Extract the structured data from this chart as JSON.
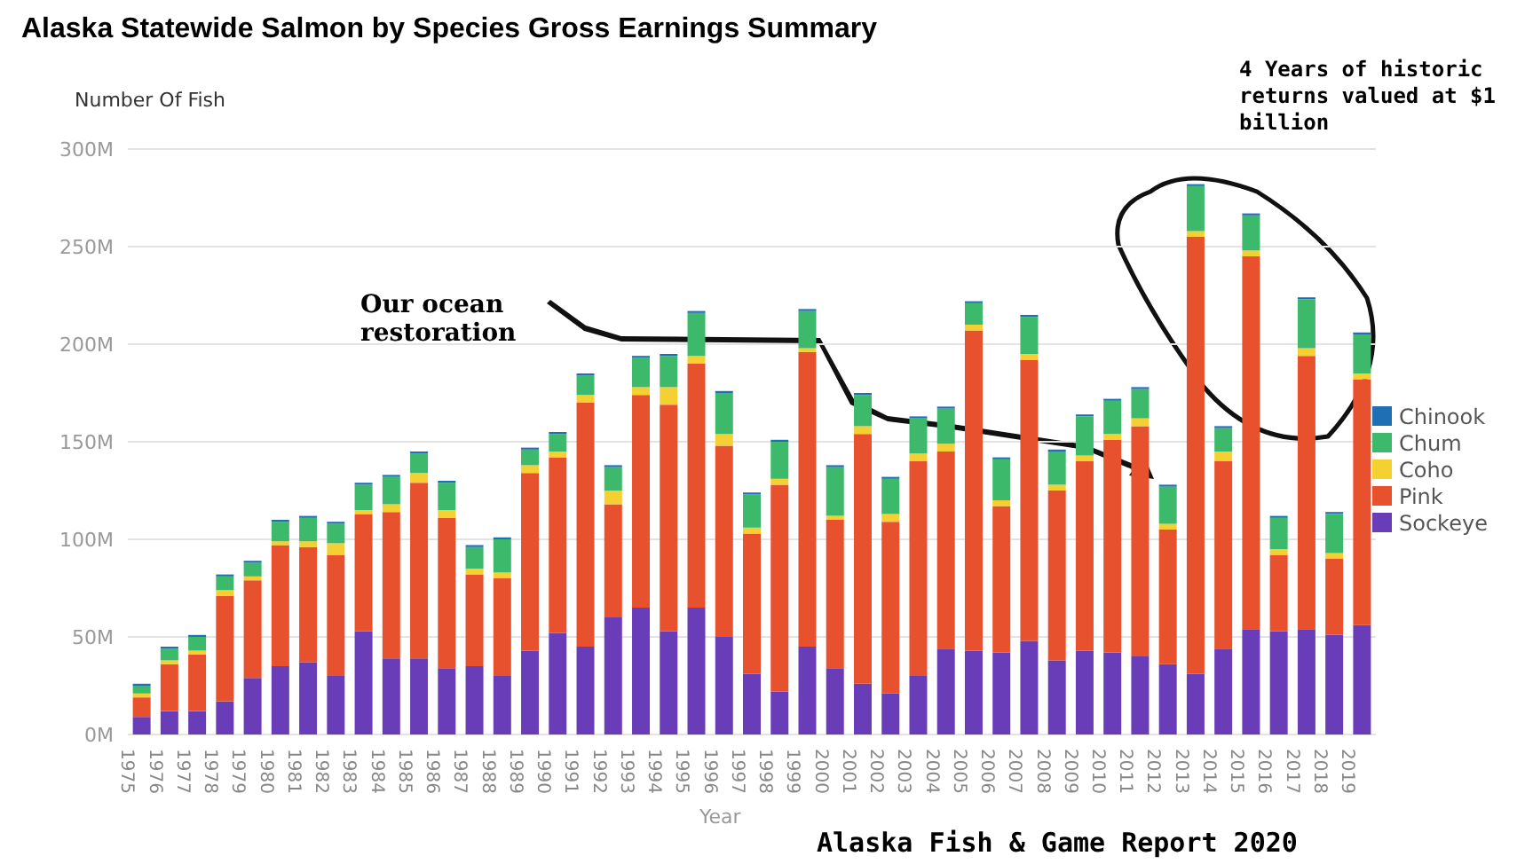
{
  "chart_data": {
    "type": "bar",
    "title": "Alaska Statewide Salmon by Species Gross Earnings Summary",
    "ylabel": "Number Of Fish",
    "xlabel": "Year",
    "categories": [
      "1975",
      "1976",
      "1977",
      "1978",
      "1979",
      "1980",
      "1981",
      "1982",
      "1983",
      "1984",
      "1985",
      "1986",
      "1987",
      "1988",
      "1989",
      "1990",
      "1991",
      "1992",
      "1993",
      "1994",
      "1995",
      "1996",
      "1997",
      "1998",
      "1999",
      "2000",
      "2001",
      "2002",
      "2003",
      "2004",
      "2005",
      "2006",
      "2007",
      "2008",
      "2009",
      "2010",
      "2011",
      "2012",
      "2013",
      "2014",
      "2015",
      "2016",
      "2017",
      "2018",
      "2019"
    ],
    "stacked": true,
    "series": [
      {
        "name": "Sockeye",
        "color": "#6a3db8",
        "values": [
          9,
          12,
          12,
          17,
          29,
          35,
          37,
          30,
          53,
          39,
          39,
          34,
          35,
          30,
          43,
          52,
          45,
          60,
          65,
          53,
          65,
          50,
          31,
          22,
          45,
          34,
          26,
          21,
          30,
          44,
          43,
          42,
          48,
          38,
          43,
          42,
          40,
          36,
          31,
          44,
          54,
          53,
          54,
          51,
          56
        ]
      },
      {
        "name": "Pink",
        "color": "#e8512d",
        "values": [
          10,
          24,
          29,
          54,
          50,
          62,
          59,
          62,
          60,
          75,
          90,
          77,
          47,
          50,
          91,
          90,
          125,
          58,
          109,
          116,
          125,
          98,
          72,
          106,
          151,
          76,
          128,
          88,
          110,
          101,
          164,
          75,
          144,
          87,
          97,
          109,
          118,
          69,
          224,
          96,
          191,
          39,
          140,
          39,
          126
        ]
      },
      {
        "name": "Coho",
        "color": "#f5d033",
        "values": [
          2,
          2,
          2,
          3,
          2,
          2,
          3,
          6,
          2,
          4,
          5,
          4,
          3,
          3,
          4,
          3,
          4,
          7,
          4,
          9,
          4,
          6,
          3,
          3,
          2,
          2,
          4,
          4,
          4,
          4,
          3,
          3,
          3,
          3,
          3,
          3,
          4,
          3,
          3,
          5,
          3,
          3,
          4,
          3,
          3
        ]
      },
      {
        "name": "Chum",
        "color": "#3cb96a",
        "values": [
          4,
          6,
          7,
          7,
          7,
          10,
          12,
          10,
          13,
          14,
          10,
          14,
          11,
          17,
          8,
          9,
          10,
          12,
          15,
          16,
          22,
          21,
          17,
          19,
          19,
          25,
          16,
          18,
          18,
          18,
          11,
          21,
          19,
          17,
          20,
          17,
          15,
          19,
          23,
          12,
          18,
          16,
          25,
          20,
          20
        ]
      },
      {
        "name": "Chinook",
        "color": "#1f6fb4",
        "values": [
          1,
          1,
          1,
          1,
          1,
          1,
          1,
          1,
          1,
          1,
          1,
          1,
          1,
          1,
          1,
          1,
          1,
          1,
          1,
          1,
          1,
          1,
          1,
          1,
          1,
          1,
          1,
          1,
          1,
          1,
          1,
          1,
          1,
          1,
          1,
          1,
          1,
          1,
          1,
          1,
          1,
          1,
          1,
          1,
          1
        ]
      }
    ],
    "ylim": [
      0,
      300
    ],
    "yticks": [
      {
        "value": 0,
        "label": "0M"
      },
      {
        "value": 50,
        "label": "50M"
      },
      {
        "value": 100,
        "label": "100M"
      },
      {
        "value": 150,
        "label": "150M"
      },
      {
        "value": 200,
        "label": "200M"
      },
      {
        "value": 250,
        "label": "250M"
      },
      {
        "value": 300,
        "label": "300M"
      }
    ],
    "grid": "y",
    "legend": "right",
    "annotations": [
      "Our ocean restoration",
      "4 Years of historic returns valued at $1 billion",
      "Alaska Fish & Game Report 2020"
    ]
  }
}
